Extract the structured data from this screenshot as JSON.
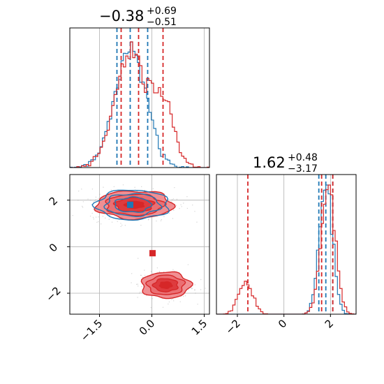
{
  "colors": {
    "blue": "#1f77b4",
    "red": "#d62728",
    "red_fill": "#f08f93",
    "red_deep": "#de3b3e",
    "grid": "#b0b0b0"
  },
  "chart_data": {
    "type": "corner",
    "parameters": [
      {
        "title_value": "−0.38",
        "title_sup": "+0.69",
        "title_sub": "−0.51",
        "ticks": [
          -1.5,
          0.0,
          1.5
        ],
        "tick_labels": [
          "−1.5",
          "0.0",
          "1.5"
        ],
        "range": [
          -2.35,
          1.65
        ]
      },
      {
        "title_value": "1.62",
        "title_sup": "+0.48",
        "title_sub": "−3.17",
        "ticks": [
          -2,
          0,
          2
        ],
        "tick_labels": [
          "−2",
          "0",
          "2"
        ],
        "range": [
          -2.9,
          3.1
        ]
      }
    ],
    "series": [
      {
        "color": "blue",
        "param0_quantiles": [
          -1.0,
          -0.62,
          -0.12
        ],
        "param1_quantiles": [
          1.5,
          1.8,
          2.1
        ],
        "marker": [
          -0.62,
          1.8
        ],
        "hist0": [
          {
            "mu": -0.62,
            "sigma": 0.45
          }
        ],
        "hist1": [
          {
            "mu": 1.8,
            "sigma": 0.28
          }
        ],
        "cloud": [
          {
            "cx": -0.55,
            "cy": 1.8,
            "sx": 0.52,
            "sy": 0.32
          }
        ]
      },
      {
        "color": "red",
        "param0_quantiles": [
          -0.88,
          -0.38,
          0.32
        ],
        "param1_quantiles": [
          -1.55,
          1.62,
          2.1
        ],
        "marker": [
          0.02,
          -0.28
        ],
        "marker2": [
          0.35,
          -1.65
        ],
        "hist0": [
          {
            "mu": -0.6,
            "sigma": 0.45,
            "w": 0.75
          },
          {
            "mu": 0.35,
            "sigma": 0.3,
            "w": 0.25
          }
        ],
        "hist1": [
          {
            "mu": 1.9,
            "sigma": 0.3,
            "w": 0.8
          },
          {
            "mu": -1.65,
            "sigma": 0.3,
            "w": 0.2
          }
        ],
        "cloud": [
          {
            "cx": -0.5,
            "cy": 1.8,
            "sx": 0.55,
            "sy": 0.3
          },
          {
            "cx": 0.4,
            "cy": -1.65,
            "sx": 0.35,
            "sy": 0.28
          }
        ]
      }
    ],
    "grid": true
  }
}
